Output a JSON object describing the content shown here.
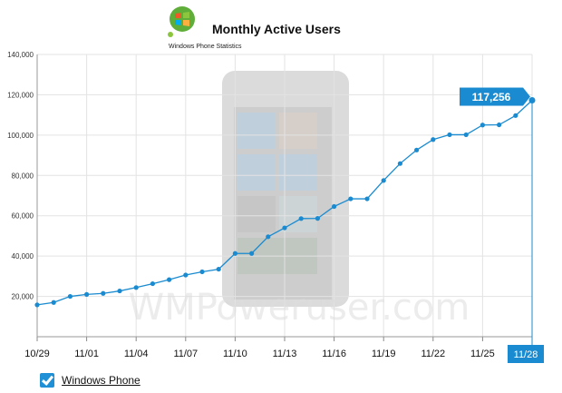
{
  "header": {
    "title": "Monthly Active Users",
    "subtitle": "Windows Phone Statistics"
  },
  "watermark": "WMPoweruser.com",
  "colors": {
    "line": "#1a8bd0",
    "grid": "#e3e3e3",
    "callout": "#1a8bd0"
  },
  "legend": {
    "label": "Windows Phone",
    "checked": true
  },
  "chart_data": {
    "type": "line",
    "title": "Monthly Active Users",
    "xlabel": "",
    "ylabel": "",
    "ylim": [
      0,
      140000
    ],
    "yticks": [
      20000,
      40000,
      60000,
      80000,
      100000,
      120000,
      140000
    ],
    "ytick_labels": [
      "20,000",
      "40,000",
      "60,000",
      "80,000",
      "100,000",
      "120,000",
      "140,000"
    ],
    "xtick_labels": [
      "10/29",
      "11/01",
      "11/04",
      "11/07",
      "11/10",
      "11/13",
      "11/16",
      "11/19",
      "11/22",
      "11/25",
      "11/28"
    ],
    "highlighted_tick": "11/28",
    "grid": true,
    "legend": "bottom-left",
    "series": [
      {
        "name": "Windows Phone",
        "x": [
          "10/29",
          "10/30",
          "10/31",
          "11/01",
          "11/02",
          "11/03",
          "11/04",
          "11/05",
          "11/06",
          "11/07",
          "11/08",
          "11/09",
          "11/10",
          "11/11",
          "11/12",
          "11/13",
          "11/14",
          "11/15",
          "11/16",
          "11/17",
          "11/18",
          "11/19",
          "11/20",
          "11/21",
          "11/22",
          "11/23",
          "11/24",
          "11/25",
          "11/26",
          "11/27",
          "11/28"
        ],
        "values": [
          15800,
          17000,
          20000,
          21000,
          21500,
          22700,
          24400,
          26300,
          28300,
          30600,
          32200,
          33500,
          41300,
          41300,
          49600,
          54000,
          58600,
          58700,
          64600,
          68400,
          68400,
          77500,
          85900,
          92600,
          97800,
          100200,
          100200,
          105000,
          105100,
          109700,
          117256
        ]
      }
    ],
    "callout": {
      "label": "117,256",
      "x": "11/28",
      "value": 117256
    }
  }
}
